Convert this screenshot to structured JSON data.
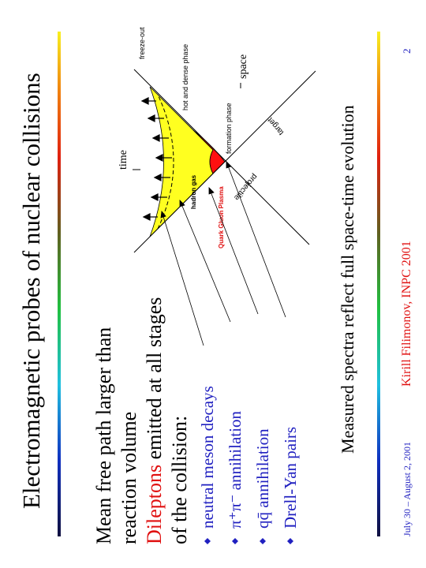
{
  "header": {
    "title": "Electromagnetic probes of nuclear collisions"
  },
  "body": {
    "lines": [
      "Mean free path larger than",
      "reaction volume"
    ],
    "highlight": "Dileptons",
    "highlight_rest": " emitted at all stages",
    "last_line": "of the collision:",
    "bullets": [
      "neutral meson decays",
      "π⁺π⁻ annihilation",
      "qq̄ annihilation",
      "Drell-Yan pairs"
    ],
    "conclusion": "Measured spectra reflect full space-time evolution"
  },
  "diagram": {
    "time": "time",
    "space": "space",
    "freeze_out": "freeze-out",
    "hot_dense": "hot and dense phase",
    "formation": "formation phase",
    "hadron_gas": "hadron gas",
    "qgp": "Quark Gluon Plasma",
    "target": "target",
    "projectile": "projectile"
  },
  "footer": {
    "date": "July 30 – August 2, 2001",
    "author": "Kirill Filimonov, INPC 2001",
    "page": "2"
  }
}
